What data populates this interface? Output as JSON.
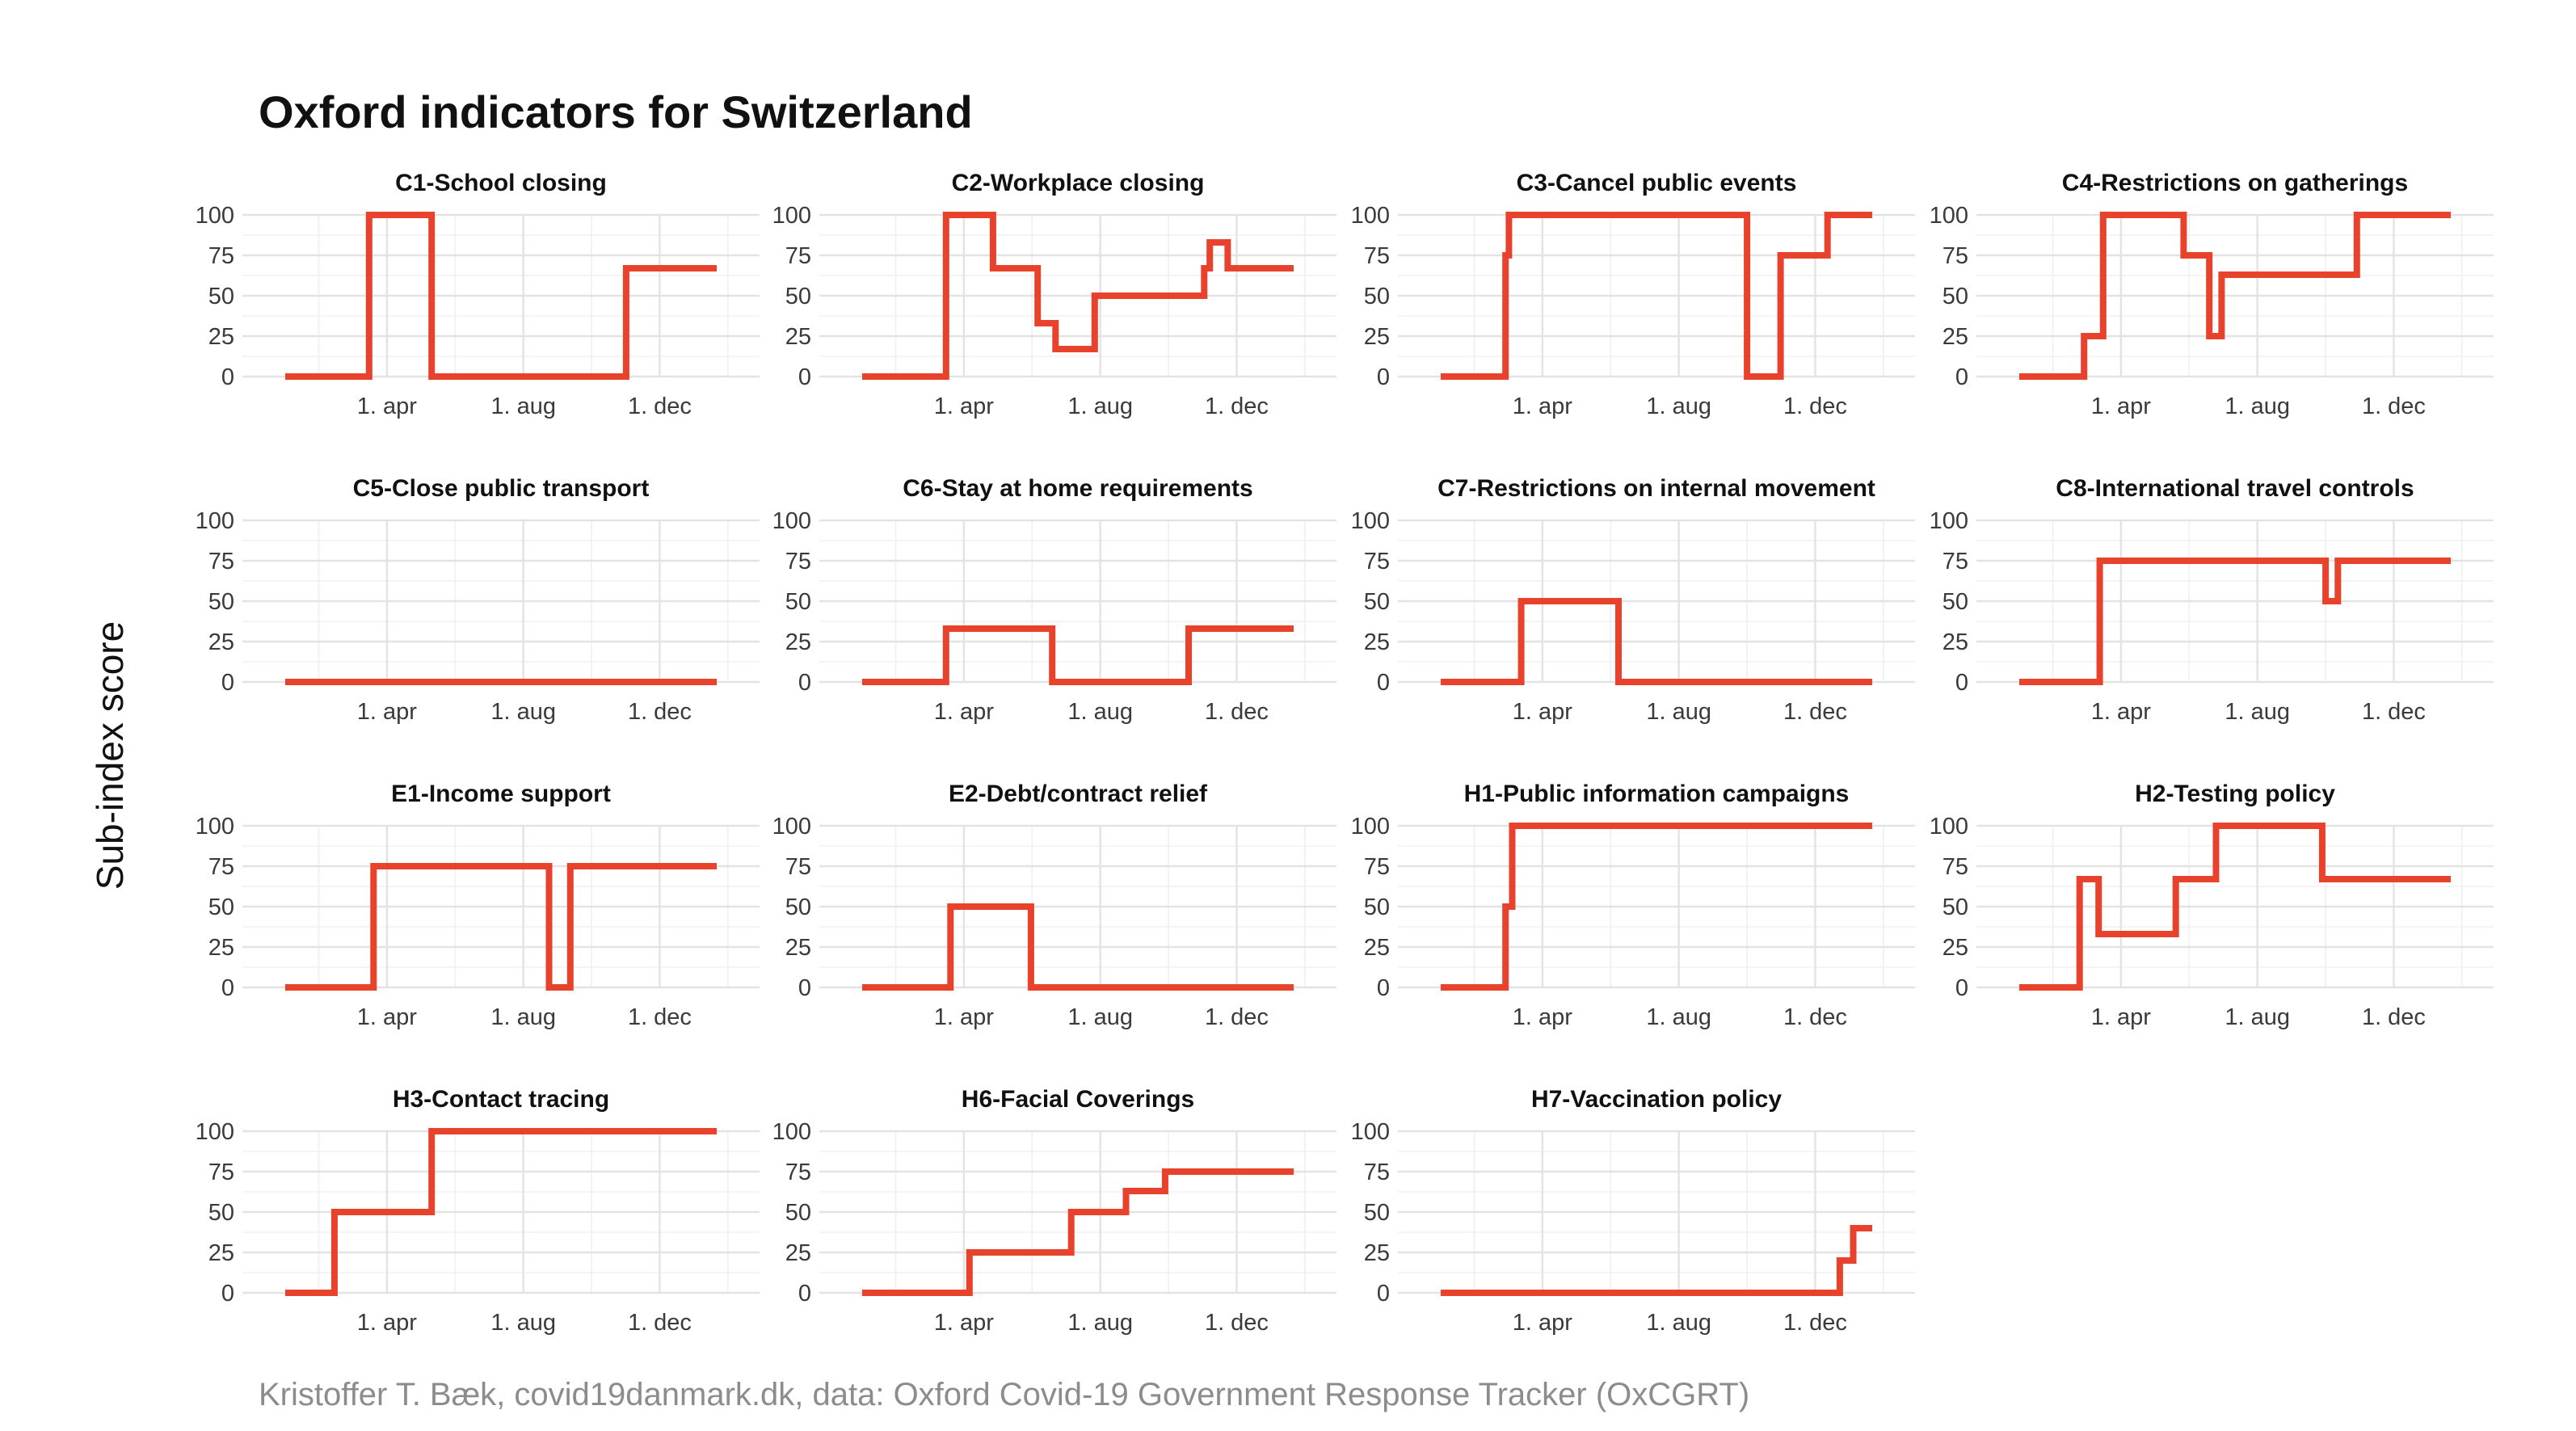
{
  "figure": {
    "title": "Oxford indicators for Switzerland",
    "ylabel": "Sub-index score",
    "caption": "Kristoffer T. Bæk, covid19danmark.dk, data: Oxford Covid-19 Government Response Tracker (OxCGRT)",
    "line_color": "#E8412C"
  },
  "chart_data": {
    "type": "line",
    "layout": "facet grid, 4 columns x 4 rows",
    "grid": true,
    "legend": "none",
    "ylim": [
      0,
      100
    ],
    "y_ticks": [
      0,
      25,
      50,
      75,
      100
    ],
    "x_range": [
      "2020-01-01",
      "2021-01-21"
    ],
    "x_ticks": [
      {
        "date": "2020-04-01",
        "label": "1. apr"
      },
      {
        "date": "2020-08-01",
        "label": "1. aug"
      },
      {
        "date": "2020-12-01",
        "label": "1. dec"
      }
    ],
    "series": [
      {
        "name": "C1-School closing",
        "steps": [
          [
            "2020-01-01",
            0
          ],
          [
            "2020-03-16",
            100
          ],
          [
            "2020-05-11",
            0
          ],
          [
            "2020-11-01",
            67
          ],
          [
            "2021-01-21",
            67
          ]
        ]
      },
      {
        "name": "C2-Workplace closing",
        "steps": [
          [
            "2020-01-01",
            0
          ],
          [
            "2020-03-16",
            100
          ],
          [
            "2020-04-27",
            67
          ],
          [
            "2020-06-06",
            33
          ],
          [
            "2020-06-22",
            17
          ],
          [
            "2020-07-27",
            50
          ],
          [
            "2020-11-02",
            67
          ],
          [
            "2020-11-07",
            83
          ],
          [
            "2020-11-23",
            67
          ],
          [
            "2021-01-21",
            67
          ]
        ]
      },
      {
        "name": "C3-Cancel public events",
        "steps": [
          [
            "2020-01-01",
            0
          ],
          [
            "2020-02-28",
            75
          ],
          [
            "2020-03-02",
            100
          ],
          [
            "2020-10-01",
            0
          ],
          [
            "2020-10-31",
            75
          ],
          [
            "2020-12-12",
            100
          ],
          [
            "2021-01-21",
            100
          ]
        ]
      },
      {
        "name": "C4-Restrictions on gatherings",
        "steps": [
          [
            "2020-01-01",
            0
          ],
          [
            "2020-02-28",
            25
          ],
          [
            "2020-03-16",
            100
          ],
          [
            "2020-05-27",
            75
          ],
          [
            "2020-06-19",
            25
          ],
          [
            "2020-06-30",
            63
          ],
          [
            "2020-10-29",
            100
          ],
          [
            "2021-01-21",
            100
          ]
        ]
      },
      {
        "name": "C5-Close public transport",
        "steps": [
          [
            "2020-01-01",
            0
          ],
          [
            "2021-01-21",
            0
          ]
        ]
      },
      {
        "name": "C6-Stay at home requirements",
        "steps": [
          [
            "2020-01-01",
            0
          ],
          [
            "2020-03-16",
            33
          ],
          [
            "2020-06-19",
            0
          ],
          [
            "2020-10-19",
            33
          ],
          [
            "2021-01-21",
            33
          ]
        ]
      },
      {
        "name": "C7-Restrictions on internal movement",
        "steps": [
          [
            "2020-01-01",
            0
          ],
          [
            "2020-03-13",
            50
          ],
          [
            "2020-06-08",
            0
          ],
          [
            "2021-01-21",
            0
          ]
        ]
      },
      {
        "name": "C8-International travel controls",
        "steps": [
          [
            "2020-01-01",
            0
          ],
          [
            "2020-03-13",
            75
          ],
          [
            "2020-10-01",
            50
          ],
          [
            "2020-10-12",
            75
          ],
          [
            "2021-01-21",
            75
          ]
        ]
      },
      {
        "name": "E1-Income support",
        "steps": [
          [
            "2020-01-01",
            0
          ],
          [
            "2020-03-20",
            75
          ],
          [
            "2020-08-24",
            0
          ],
          [
            "2020-09-12",
            75
          ],
          [
            "2021-01-21",
            75
          ]
        ]
      },
      {
        "name": "E2-Debt/contract relief",
        "steps": [
          [
            "2020-01-01",
            0
          ],
          [
            "2020-03-20",
            50
          ],
          [
            "2020-05-31",
            0
          ],
          [
            "2021-01-21",
            0
          ]
        ]
      },
      {
        "name": "H1-Public information campaigns",
        "steps": [
          [
            "2020-01-01",
            0
          ],
          [
            "2020-02-28",
            50
          ],
          [
            "2020-03-05",
            100
          ],
          [
            "2021-01-21",
            100
          ]
        ]
      },
      {
        "name": "H2-Testing policy",
        "steps": [
          [
            "2020-01-01",
            0
          ],
          [
            "2020-02-24",
            67
          ],
          [
            "2020-03-12",
            33
          ],
          [
            "2020-05-20",
            67
          ],
          [
            "2020-06-25",
            100
          ],
          [
            "2020-09-28",
            67
          ],
          [
            "2021-01-21",
            67
          ]
        ]
      },
      {
        "name": "H3-Contact tracing",
        "steps": [
          [
            "2020-01-01",
            0
          ],
          [
            "2020-02-14",
            50
          ],
          [
            "2020-05-11",
            100
          ],
          [
            "2021-01-21",
            100
          ]
        ]
      },
      {
        "name": "H6-Facial Coverings",
        "steps": [
          [
            "2020-01-01",
            0
          ],
          [
            "2020-04-06",
            25
          ],
          [
            "2020-07-06",
            50
          ],
          [
            "2020-08-24",
            63
          ],
          [
            "2020-09-28",
            75
          ],
          [
            "2021-01-21",
            75
          ]
        ]
      },
      {
        "name": "H7-Vaccination policy",
        "steps": [
          [
            "2020-01-01",
            0
          ],
          [
            "2020-12-23",
            20
          ],
          [
            "2021-01-04",
            40
          ],
          [
            "2021-01-21",
            40
          ]
        ]
      }
    ]
  }
}
